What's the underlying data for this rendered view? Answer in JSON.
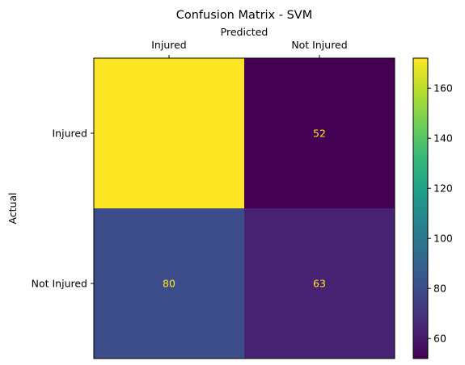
{
  "chart_data": {
    "type": "heatmap",
    "title": "Confusion Matrix - SVM",
    "xlabel": "Predicted",
    "ylabel": "Actual",
    "x_categories": [
      "Injured",
      "Not Injured"
    ],
    "y_categories": [
      "Injured",
      "Not Injured"
    ],
    "values": [
      [
        172,
        52
      ],
      [
        80,
        63
      ]
    ],
    "colormap": "viridis",
    "colorbar": {
      "range": [
        52,
        172
      ],
      "ticks": [
        60,
        80,
        100,
        120,
        140,
        160
      ]
    },
    "cell_text_color": "#fde725",
    "grid": false,
    "xaxis_position": "top"
  }
}
